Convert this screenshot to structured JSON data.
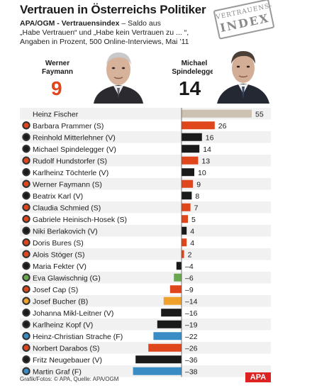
{
  "header": {
    "title": "Vertrauen in Österreichs Politiker",
    "subtitle_bold": "APA/OGM - Vertrauensindex",
    "subtitle_lines": [
      " – Saldo aus",
      "„Habe Vertrauen“ und „Habe kein Vertrauen zu ... “,",
      "Angaben in Prozent, 500 Online-Interviews, Mai ’11"
    ],
    "stamp_top": "VERTRAUENS-",
    "stamp_bottom": "INDEX"
  },
  "portraits": [
    {
      "first": "Werner",
      "last": "Faymann",
      "score": "9",
      "score_color": "#e0461c"
    },
    {
      "first": "Michael",
      "last": "Spindelegger",
      "score": "14",
      "score_color": "#1a1a1a"
    }
  ],
  "party_colors": {
    "none": "#ffffff",
    "S": "#e0461c",
    "V": "#1a1a1a",
    "G": "#6aa84f",
    "B": "#f0a12b",
    "F": "#3a8cc4"
  },
  "chart_data": {
    "type": "bar",
    "orientation": "horizontal",
    "categories": [
      "Heinz Fischer",
      "Barbara Prammer (S)",
      "Reinhold Mitterlehner (V)",
      "Michael Spindelegger (V)",
      "Rudolf Hundstorfer (S)",
      "Karlheinz Töchterle (V)",
      "Werner Faymann (S)",
      "Beatrix Karl (V)",
      "Claudia Schmied (S)",
      "Gabriele Heinisch-Hosek (S)",
      "Niki Berlakovich (V)",
      "Doris Bures (S)",
      "Alois Stöger (S)",
      "Maria Fekter (V)",
      "Eva Glawischnig (G)",
      "Josef Cap (S)",
      "Josef Bucher (B)",
      "Johanna Mikl-Leitner (V)",
      "Karlheinz Kopf (V)",
      "Heinz-Christian Strache (F)",
      "Norbert Darabos (S)",
      "Fritz Neugebauer (V)",
      "Martin Graf (F)"
    ],
    "parties": [
      "none",
      "S",
      "V",
      "V",
      "S",
      "V",
      "S",
      "V",
      "S",
      "S",
      "V",
      "S",
      "S",
      "V",
      "G",
      "S",
      "B",
      "V",
      "V",
      "F",
      "S",
      "V",
      "F"
    ],
    "values": [
      55,
      26,
      16,
      14,
      13,
      10,
      9,
      8,
      7,
      5,
      4,
      4,
      2,
      -4,
      -6,
      -9,
      -14,
      -16,
      -19,
      -22,
      -26,
      -36,
      -38
    ],
    "value_labels": [
      "55",
      "26",
      "16",
      "14",
      "13",
      "10",
      "9",
      "8",
      "7",
      "5",
      "4",
      "4",
      "2",
      "–4",
      "–6",
      "–9",
      "–14",
      "–16",
      "–19",
      "–22",
      "–26",
      "–36",
      "–38"
    ],
    "bar_colors_note": "bars colored by party; Heinz Fischer bar is beige",
    "fischer_color": "#cdc2b2",
    "xlim": [
      -40,
      60
    ]
  },
  "footer": {
    "credit": "Grafik/Fotos: © APA, Quelle: APA/OGM",
    "logo": "APA"
  }
}
